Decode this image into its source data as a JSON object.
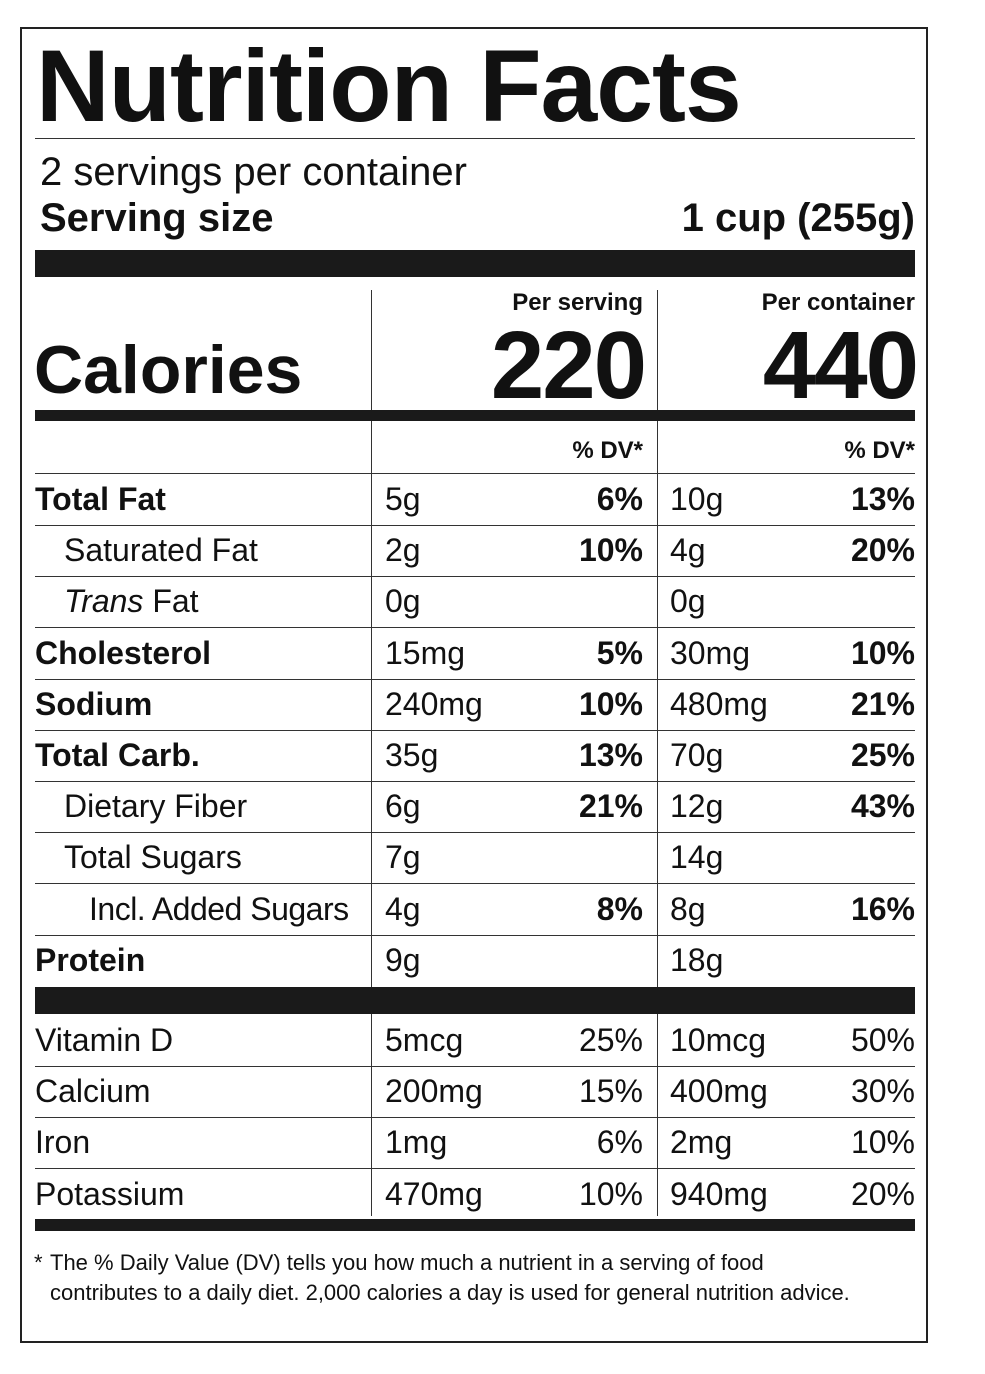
{
  "title": "Nutrition Facts",
  "servings": "2 servings per container",
  "serving_size_label": "Serving size",
  "serving_size": "1 cup (255g)",
  "calories_label": "Calories",
  "per_serving_label": "Per serving",
  "per_container_label": "Per container",
  "calories_serving": 220,
  "calories_container": 440,
  "dv_header": "% DV*",
  "nutrients": [
    {
      "name": "Total Fat",
      "bold": true,
      "indent": 0,
      "serving": "5g",
      "serving_dv": "6%",
      "container": "10g",
      "container_dv": "13%"
    },
    {
      "name": "Saturated Fat",
      "bold": false,
      "indent": 1,
      "serving": "2g",
      "serving_dv": "10%",
      "container": "4g",
      "container_dv": "20%"
    },
    {
      "name_italic": "Trans",
      "name": "Fat",
      "bold": false,
      "indent": 1,
      "serving": "0g",
      "container": "0g"
    },
    {
      "name": "Cholesterol",
      "bold": true,
      "indent": 0,
      "serving": "15mg",
      "serving_dv": "5%",
      "container": "30mg",
      "container_dv": "10%"
    },
    {
      "name": "Sodium",
      "bold": true,
      "indent": 0,
      "serving": "240mg",
      "serving_dv": "10%",
      "container": "480mg",
      "container_dv": "21%"
    },
    {
      "name": "Total Carb.",
      "bold": true,
      "indent": 0,
      "serving": "35g",
      "serving_dv": "13%",
      "container": "70g",
      "container_dv": "25%"
    },
    {
      "name": "Dietary Fiber",
      "bold": false,
      "indent": 1,
      "serving": "6g",
      "serving_dv": "21%",
      "container": "12g",
      "container_dv": "43%"
    },
    {
      "name": "Total Sugars",
      "bold": false,
      "indent": 1,
      "serving": "7g",
      "container": "14g"
    },
    {
      "name": "Incl. Added Sugars",
      "bold": false,
      "indent": 2,
      "serving": "4g",
      "serving_dv": "8%",
      "container": "8g",
      "container_dv": "16%"
    },
    {
      "name": "Protein",
      "bold": true,
      "indent": 0,
      "serving": "9g",
      "container": "18g"
    }
  ],
  "vitamins": [
    {
      "name": "Vitamin D",
      "serving": "5mcg",
      "serving_dv": "25%",
      "container": "10mcg",
      "container_dv": "50%"
    },
    {
      "name": "Calcium",
      "serving": "200mg",
      "serving_dv": "15%",
      "container": "400mg",
      "container_dv": "30%"
    },
    {
      "name": "Iron",
      "serving": "1mg",
      "serving_dv": "6%",
      "container": "2mg",
      "container_dv": "10%"
    },
    {
      "name": "Potassium",
      "serving": "470mg",
      "serving_dv": "10%",
      "container": "940mg",
      "container_dv": "20%"
    }
  ],
  "footnote_mark": "*",
  "footnote": "The % Daily Value (DV) tells you how much a nutrient in a serving of food contributes to a daily diet. 2,000 calories a day is used for general nutrition advice."
}
